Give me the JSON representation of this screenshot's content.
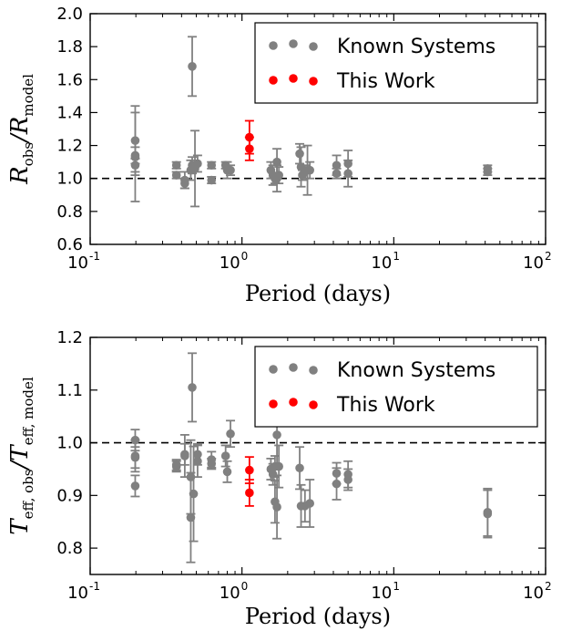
{
  "chart_data": [
    {
      "type": "scatter",
      "xscale": "log",
      "xlim": [
        0.1,
        100
      ],
      "ylim": [
        0.6,
        2.0
      ],
      "yticks": [
        "0.6",
        "0.8",
        "1.0",
        "1.2",
        "1.4",
        "1.6",
        "1.8",
        "2.0"
      ],
      "xlabel": "Period (days)",
      "ylabel_main": "R",
      "ylabel_sub1": "obs",
      "ylabel_sep": "/",
      "ylabel_sub2": "model",
      "reference_line": 1.0,
      "legend_position": "top-right",
      "series": [
        {
          "name": "Known Systems",
          "color": "#808080",
          "points": [
            {
              "x": 0.198,
              "y": 1.23,
              "err": 0.21
            },
            {
              "x": 0.198,
              "y": 1.13,
              "err": 0.27
            },
            {
              "x": 0.198,
              "y": 1.14,
              "err": 0.05
            },
            {
              "x": 0.198,
              "y": 1.08,
              "err": 0.04
            },
            {
              "x": 0.37,
              "y": 1.08,
              "err": 0.02
            },
            {
              "x": 0.37,
              "y": 1.02,
              "err": 0.02
            },
            {
              "x": 0.42,
              "y": 0.99,
              "err": 0.05
            },
            {
              "x": 0.42,
              "y": 0.97,
              "err": 0.03
            },
            {
              "x": 0.46,
              "y": 1.05,
              "err": 0.06
            },
            {
              "x": 0.47,
              "y": 1.68,
              "err": 0.18
            },
            {
              "x": 0.47,
              "y": 1.08,
              "err": 0.05
            },
            {
              "x": 0.49,
              "y": 1.06,
              "err": 0.23
            },
            {
              "x": 0.51,
              "y": 1.09,
              "err": 0.05
            },
            {
              "x": 0.63,
              "y": 1.08,
              "err": 0.02
            },
            {
              "x": 0.63,
              "y": 0.99,
              "err": 0.02
            },
            {
              "x": 0.78,
              "y": 1.08,
              "err": 0.02
            },
            {
              "x": 0.8,
              "y": 1.05,
              "err": 0.05
            },
            {
              "x": 0.84,
              "y": 1.05,
              "err": 0.03
            },
            {
              "x": 1.55,
              "y": 1.05,
              "err": 0.05
            },
            {
              "x": 1.6,
              "y": 1.02,
              "err": 0.06
            },
            {
              "x": 1.65,
              "y": 1.0,
              "err": 0.03
            },
            {
              "x": 1.7,
              "y": 1.0,
              "err": 0.08
            },
            {
              "x": 1.7,
              "y": 1.1,
              "err": 0.08
            },
            {
              "x": 1.75,
              "y": 1.02,
              "err": 0.05
            },
            {
              "x": 2.4,
              "y": 1.15,
              "err": 0.06
            },
            {
              "x": 2.45,
              "y": 1.07,
              "err": 0.12
            },
            {
              "x": 2.5,
              "y": 1.02,
              "err": 0.03
            },
            {
              "x": 2.6,
              "y": 1.04,
              "err": 0.04
            },
            {
              "x": 2.7,
              "y": 1.05,
              "err": 0.15
            },
            {
              "x": 2.8,
              "y": 1.05,
              "err": 0.05
            },
            {
              "x": 4.2,
              "y": 1.08,
              "err": 0.06
            },
            {
              "x": 4.2,
              "y": 1.03,
              "err": 0.03
            },
            {
              "x": 5.0,
              "y": 1.09,
              "err": 0.08
            },
            {
              "x": 5.0,
              "y": 1.03,
              "err": 0.08
            },
            {
              "x": 41.5,
              "y": 1.06,
              "err": 0.02
            },
            {
              "x": 41.5,
              "y": 1.04,
              "err": 0.02
            }
          ]
        },
        {
          "name": "This Work",
          "color": "#ff0000",
          "points": [
            {
              "x": 1.12,
              "y": 1.25,
              "err": 0.1
            },
            {
              "x": 1.12,
              "y": 1.18,
              "err": 0.07
            }
          ]
        }
      ]
    },
    {
      "type": "scatter",
      "xscale": "log",
      "xlim": [
        0.1,
        100
      ],
      "ylim": [
        0.75,
        1.2
      ],
      "yticks": [
        "0.8",
        "0.9",
        "1.0",
        "1.1",
        "1.2"
      ],
      "xlabel": "Period (days)",
      "ylabel_main": "T",
      "ylabel_sub1": "eff, obs",
      "ylabel_sep": "/",
      "ylabel_sub2": "eff, model",
      "reference_line": 1.0,
      "legend_position": "top-right",
      "series": [
        {
          "name": "Known Systems",
          "color": "#808080",
          "points": [
            {
              "x": 0.198,
              "y": 1.005,
              "err": 0.02
            },
            {
              "x": 0.198,
              "y": 0.975,
              "err": 0.03
            },
            {
              "x": 0.198,
              "y": 0.972,
              "err": 0.02
            },
            {
              "x": 0.198,
              "y": 0.918,
              "err": 0.02
            },
            {
              "x": 0.37,
              "y": 0.958,
              "err": 0.01
            },
            {
              "x": 0.37,
              "y": 0.955,
              "err": 0.01
            },
            {
              "x": 0.42,
              "y": 0.975,
              "err": 0.04
            },
            {
              "x": 0.42,
              "y": 0.978,
              "err": 0.02
            },
            {
              "x": 0.46,
              "y": 0.935,
              "err": 0.07
            },
            {
              "x": 0.46,
              "y": 0.858,
              "err": 0.085
            },
            {
              "x": 0.47,
              "y": 1.105,
              "err": 0.065
            },
            {
              "x": 0.48,
              "y": 0.903,
              "err": 0.09
            },
            {
              "x": 0.51,
              "y": 0.965,
              "err": 0.03
            },
            {
              "x": 0.51,
              "y": 0.978,
              "err": 0.02
            },
            {
              "x": 0.63,
              "y": 0.968,
              "err": 0.015
            },
            {
              "x": 0.63,
              "y": 0.96,
              "err": 0.01
            },
            {
              "x": 0.78,
              "y": 0.975,
              "err": 0.02
            },
            {
              "x": 0.8,
              "y": 0.945,
              "err": 0.02
            },
            {
              "x": 0.84,
              "y": 1.017,
              "err": 0.025
            },
            {
              "x": 1.55,
              "y": 0.95,
              "err": 0.02
            },
            {
              "x": 1.6,
              "y": 0.94,
              "err": 0.02
            },
            {
              "x": 1.65,
              "y": 0.955,
              "err": 0.02
            },
            {
              "x": 1.65,
              "y": 0.888,
              "err": 0.04
            },
            {
              "x": 1.7,
              "y": 1.015,
              "err": 0.06
            },
            {
              "x": 1.7,
              "y": 0.878,
              "err": 0.06
            },
            {
              "x": 1.75,
              "y": 0.955,
              "err": 0.04
            },
            {
              "x": 2.4,
              "y": 0.952,
              "err": 0.04
            },
            {
              "x": 2.45,
              "y": 0.88,
              "err": 0.04
            },
            {
              "x": 2.6,
              "y": 0.88,
              "err": 0.03
            },
            {
              "x": 2.8,
              "y": 0.885,
              "err": 0.045
            },
            {
              "x": 4.2,
              "y": 0.942,
              "err": 0.02
            },
            {
              "x": 4.2,
              "y": 0.922,
              "err": 0.03
            },
            {
              "x": 5.0,
              "y": 0.94,
              "err": 0.025
            },
            {
              "x": 5.0,
              "y": 0.93,
              "err": 0.02
            },
            {
              "x": 41.5,
              "y": 0.868,
              "err": 0.045
            },
            {
              "x": 41.5,
              "y": 0.865,
              "err": 0.045
            }
          ]
        },
        {
          "name": "This Work",
          "color": "#ff0000",
          "points": [
            {
              "x": 1.12,
              "y": 0.948,
              "err": 0.025
            },
            {
              "x": 1.12,
              "y": 0.905,
              "err": 0.025
            }
          ]
        }
      ]
    }
  ]
}
